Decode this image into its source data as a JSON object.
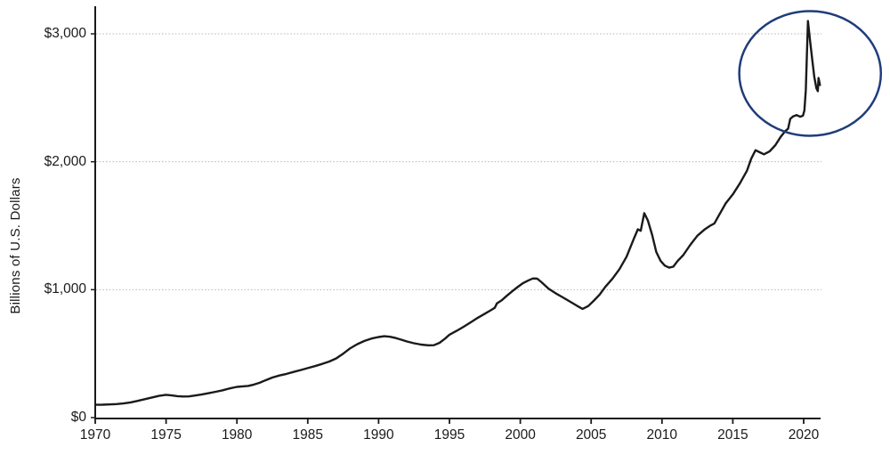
{
  "colors": {
    "background": "#ffffff",
    "line": "#1a1a1a",
    "axis": "#1a1a1a",
    "gridline": "#b5b5b5",
    "tick_text": "#1a1a1a",
    "annotation_circle": "#1f3d7a"
  },
  "chart_data": {
    "type": "line",
    "ylabel": "Billions of U.S. Dollars",
    "xlabel": "",
    "grid": "horizontal-dotted",
    "legend": "none",
    "xlim": [
      1970,
      2021.3
    ],
    "ylim": [
      0,
      3215
    ],
    "x_ticks": [
      {
        "value": 1970,
        "label": "1970"
      },
      {
        "value": 1975,
        "label": "1975"
      },
      {
        "value": 1980,
        "label": "1980"
      },
      {
        "value": 1985,
        "label": "1985"
      },
      {
        "value": 1990,
        "label": "1990"
      },
      {
        "value": 1995,
        "label": "1995"
      },
      {
        "value": 2000,
        "label": "2000"
      },
      {
        "value": 2005,
        "label": "2005"
      },
      {
        "value": 2010,
        "label": "2010"
      },
      {
        "value": 2015,
        "label": "2015"
      },
      {
        "value": 2020,
        "label": "2020"
      }
    ],
    "y_ticks": [
      {
        "value": 0,
        "label": "$0"
      },
      {
        "value": 1000,
        "label": "$1,000"
      },
      {
        "value": 2000,
        "label": "$2,000"
      },
      {
        "value": 3000,
        "label": "$3,000"
      }
    ],
    "annotation": {
      "type": "ellipse-highlight",
      "meaning": "circles the 2020 spike and pullback",
      "center": [
        2020.45,
        2690
      ],
      "radius_years": 5.0,
      "radius_value": 487
    },
    "series": [
      {
        "name": "",
        "points": [
          [
            1970,
            100
          ],
          [
            1970.5,
            101
          ],
          [
            1971,
            103
          ],
          [
            1971.5,
            106
          ],
          [
            1972,
            111
          ],
          [
            1972.5,
            119
          ],
          [
            1973,
            131
          ],
          [
            1973.5,
            144
          ],
          [
            1974,
            157
          ],
          [
            1974.5,
            170
          ],
          [
            1975,
            178
          ],
          [
            1975.4,
            173
          ],
          [
            1975.8,
            168
          ],
          [
            1976.2,
            165
          ],
          [
            1976.6,
            166
          ],
          [
            1977,
            172
          ],
          [
            1977.5,
            180
          ],
          [
            1978,
            191
          ],
          [
            1978.5,
            202
          ],
          [
            1979,
            214
          ],
          [
            1979.5,
            228
          ],
          [
            1980,
            240
          ],
          [
            1980.4,
            244
          ],
          [
            1980.8,
            248
          ],
          [
            1981.2,
            258
          ],
          [
            1981.6,
            272
          ],
          [
            1982,
            291
          ],
          [
            1982.5,
            313
          ],
          [
            1983,
            329
          ],
          [
            1983.5,
            342
          ],
          [
            1984,
            357
          ],
          [
            1984.5,
            372
          ],
          [
            1985,
            387
          ],
          [
            1985.5,
            402
          ],
          [
            1986,
            419
          ],
          [
            1986.5,
            438
          ],
          [
            1987,
            462
          ],
          [
            1987.5,
            500
          ],
          [
            1988,
            542
          ],
          [
            1988.5,
            574
          ],
          [
            1989,
            599
          ],
          [
            1989.5,
            618
          ],
          [
            1990,
            630
          ],
          [
            1990.4,
            636
          ],
          [
            1990.8,
            632
          ],
          [
            1991.2,
            622
          ],
          [
            1991.6,
            609
          ],
          [
            1992,
            595
          ],
          [
            1992.5,
            581
          ],
          [
            1993,
            571
          ],
          [
            1993.5,
            565
          ],
          [
            1993.9,
            566
          ],
          [
            1994.3,
            585
          ],
          [
            1994.7,
            618
          ],
          [
            1995,
            648
          ],
          [
            1995.5,
            678
          ],
          [
            1996,
            710
          ],
          [
            1996.5,
            745
          ],
          [
            1997,
            780
          ],
          [
            1997.5,
            812
          ],
          [
            1998,
            845
          ],
          [
            1998.2,
            858
          ],
          [
            1998.35,
            892
          ],
          [
            1998.7,
            918
          ],
          [
            1999,
            948
          ],
          [
            1999.4,
            984
          ],
          [
            1999.8,
            1020
          ],
          [
            2000.2,
            1052
          ],
          [
            2000.6,
            1074
          ],
          [
            2000.9,
            1088
          ],
          [
            2001.2,
            1086
          ],
          [
            2001.5,
            1058
          ],
          [
            2002,
            1008
          ],
          [
            2002.5,
            972
          ],
          [
            2003,
            940
          ],
          [
            2003.5,
            908
          ],
          [
            2004,
            874
          ],
          [
            2004.4,
            850
          ],
          [
            2004.8,
            872
          ],
          [
            2005.2,
            915
          ],
          [
            2005.6,
            962
          ],
          [
            2006,
            1022
          ],
          [
            2006.5,
            1085
          ],
          [
            2007,
            1160
          ],
          [
            2007.5,
            1258
          ],
          [
            2008,
            1395
          ],
          [
            2008.3,
            1472
          ],
          [
            2008.5,
            1460
          ],
          [
            2008.75,
            1598
          ],
          [
            2009,
            1542
          ],
          [
            2009.3,
            1430
          ],
          [
            2009.6,
            1295
          ],
          [
            2009.9,
            1226
          ],
          [
            2010.2,
            1188
          ],
          [
            2010.5,
            1172
          ],
          [
            2010.8,
            1180
          ],
          [
            2011.1,
            1224
          ],
          [
            2011.5,
            1270
          ],
          [
            2012,
            1350
          ],
          [
            2012.5,
            1422
          ],
          [
            2013,
            1470
          ],
          [
            2013.4,
            1500
          ],
          [
            2013.7,
            1518
          ],
          [
            2014,
            1578
          ],
          [
            2014.5,
            1675
          ],
          [
            2015,
            1745
          ],
          [
            2015.5,
            1832
          ],
          [
            2016,
            1930
          ],
          [
            2016.3,
            2024
          ],
          [
            2016.6,
            2090
          ],
          [
            2016.9,
            2074
          ],
          [
            2017.2,
            2058
          ],
          [
            2017.6,
            2082
          ],
          [
            2018,
            2130
          ],
          [
            2018.4,
            2198
          ],
          [
            2018.7,
            2240
          ],
          [
            2018.9,
            2258
          ],
          [
            2019.05,
            2335
          ],
          [
            2019.25,
            2355
          ],
          [
            2019.5,
            2365
          ],
          [
            2019.75,
            2352
          ],
          [
            2019.95,
            2360
          ],
          [
            2020.05,
            2400
          ],
          [
            2020.15,
            2560
          ],
          [
            2020.3,
            3100
          ],
          [
            2020.45,
            2945
          ],
          [
            2020.6,
            2800
          ],
          [
            2020.75,
            2665
          ],
          [
            2020.9,
            2575
          ],
          [
            2021,
            2552
          ],
          [
            2021.05,
            2655
          ],
          [
            2021.15,
            2600
          ]
        ]
      }
    ]
  }
}
